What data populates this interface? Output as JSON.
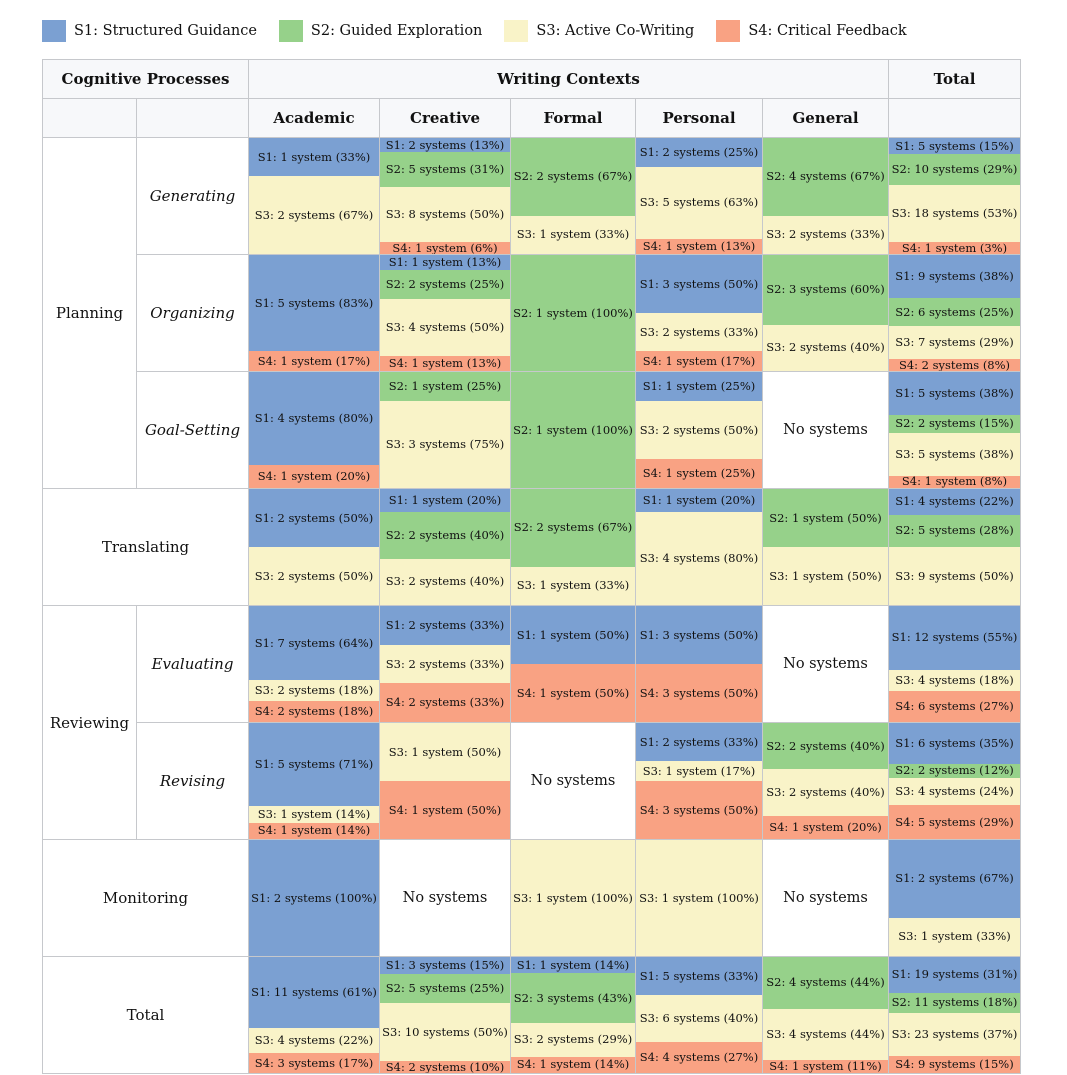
{
  "colors": {
    "S1": "#7ba0d2",
    "S2": "#96d18a",
    "S3": "#f9f3c8",
    "S4": "#f9a283"
  },
  "legend": [
    "S1: Structured Guidance",
    "S2: Guided Exploration",
    "S3: Active Co-Writing",
    "S4: Critical Feedback"
  ],
  "header": {
    "cognitive": "Cognitive Processes",
    "contexts": "Writing Contexts",
    "total": "Total",
    "columns": [
      "Academic",
      "Creative",
      "Formal",
      "Personal",
      "General"
    ]
  },
  "chart_data": {
    "type": "table",
    "no_systems": "No systems",
    "rows": [
      {
        "group": "Planning",
        "sub": "Generating",
        "cells": [
          [
            "S1: 1 system (33%)",
            "S3: 2 systems (67%)"
          ],
          [
            "S1: 2 systems (13%)",
            "S2: 5 systems (31%)",
            "S3: 8 systems (50%)",
            "S4: 1 system (6%)"
          ],
          [
            "S2: 2 systems (67%)",
            "S3: 1 system (33%)"
          ],
          [
            "S1: 2 systems (25%)",
            "S3: 5 systems (63%)",
            "S4: 1 system (13%)"
          ],
          [
            "S2: 4 systems (67%)",
            "S3: 2 systems (33%)"
          ],
          [
            "S1: 5 systems (15%)",
            "S2: 10 systems (29%)",
            "S3: 18 systems (53%)",
            "S4: 1 system (3%)"
          ]
        ]
      },
      {
        "group": "Planning",
        "sub": "Organizing",
        "cells": [
          [
            "S1: 5 systems (83%)",
            "S4: 1 system (17%)"
          ],
          [
            "S1: 1 system (13%)",
            "S2: 2 systems (25%)",
            "S3: 4 systems (50%)",
            "S4: 1 system (13%)"
          ],
          [
            "S2: 1 system (100%)"
          ],
          [
            "S1: 3 systems (50%)",
            "S3: 2 systems (33%)",
            "S4: 1 system (17%)"
          ],
          [
            "S2: 3 systems (60%)",
            "S3: 2 systems (40%)"
          ],
          [
            "S1: 9 systems (38%)",
            "S2: 6 systems (25%)",
            "S3: 7 systems (29%)",
            "S4: 2 systems (8%)"
          ]
        ]
      },
      {
        "group": "Planning",
        "sub": "Goal-Setting",
        "cells": [
          [
            "S1: 4 systems (80%)",
            "S4: 1 system (20%)"
          ],
          [
            "S2: 1 system (25%)",
            "S3: 3 systems (75%)"
          ],
          [
            "S2: 1 system (100%)"
          ],
          [
            "S1: 1 system (25%)",
            "S3: 2 systems (50%)",
            "S4: 1 system (25%)"
          ],
          [],
          [
            "S1: 5 systems (38%)",
            "S2: 2 systems (15%)",
            "S3: 5 systems (38%)",
            "S4: 1 system (8%)"
          ]
        ]
      },
      {
        "group": "Translating",
        "sub": "",
        "cells": [
          [
            "S1: 2 systems (50%)",
            "S3: 2 systems (50%)"
          ],
          [
            "S1: 1 system (20%)",
            "S2: 2 systems (40%)",
            "S3: 2 systems (40%)"
          ],
          [
            "S2: 2 systems (67%)",
            "S3: 1 system (33%)"
          ],
          [
            "S1: 1 system (20%)",
            "S3: 4 systems (80%)"
          ],
          [
            "S2: 1 system (50%)",
            "S3: 1 system (50%)"
          ],
          [
            "S1: 4 systems (22%)",
            "S2: 5 systems (28%)",
            "S3: 9 systems (50%)"
          ]
        ]
      },
      {
        "group": "Reviewing",
        "sub": "Evaluating",
        "cells": [
          [
            "S1: 7 systems (64%)",
            "S3: 2 systems (18%)",
            "S4: 2 systems (18%)"
          ],
          [
            "S1: 2 systems (33%)",
            "S3: 2 systems (33%)",
            "S4: 2 systems (33%)"
          ],
          [
            "S1: 1 system (50%)",
            "S4: 1 system (50%)"
          ],
          [
            "S1: 3 systems (50%)",
            "S4: 3 systems (50%)"
          ],
          [],
          [
            "S1: 12 systems (55%)",
            "S3: 4 systems (18%)",
            "S4: 6 systems (27%)"
          ]
        ]
      },
      {
        "group": "Reviewing",
        "sub": "Revising",
        "cells": [
          [
            "S1: 5 systems (71%)",
            "S3: 1 system (14%)",
            "S4: 1 system (14%)"
          ],
          [
            "S3: 1 system (50%)",
            "S4: 1 system (50%)"
          ],
          [],
          [
            "S1: 2 systems (33%)",
            "S3: 1 system (17%)",
            "S4: 3 systems (50%)"
          ],
          [
            "S2: 2 systems (40%)",
            "S3: 2 systems (40%)",
            "S4: 1 system (20%)"
          ],
          [
            "S1: 6 systems (35%)",
            "S2: 2 systems (12%)",
            "S3: 4 systems (24%)",
            "S4: 5 systems (29%)"
          ]
        ]
      },
      {
        "group": "Monitoring",
        "sub": "",
        "cells": [
          [
            "S1: 2 systems (100%)"
          ],
          [],
          [
            "S3: 1 system (100%)"
          ],
          [
            "S3: 1 system (100%)"
          ],
          [],
          [
            "S1: 2 systems (67%)",
            "S3: 1 system (33%)"
          ]
        ]
      },
      {
        "group": "Total",
        "sub": "",
        "cells": [
          [
            "S1: 11 systems (61%)",
            "S3: 4 systems (22%)",
            "S4: 3 systems (17%)"
          ],
          [
            "S1: 3 systems (15%)",
            "S2: 5 systems (25%)",
            "S3: 10 systems (50%)",
            "S4: 2 systems (10%)"
          ],
          [
            "S1: 1 system (14%)",
            "S2: 3 systems (43%)",
            "S3: 2 systems (29%)",
            "S4: 1 system (14%)"
          ],
          [
            "S1: 5 systems (33%)",
            "S3: 6 systems (40%)",
            "S4: 4 systems (27%)"
          ],
          [
            "S2: 4 systems (44%)",
            "S3: 4 systems (44%)",
            "S4: 1 system (11%)"
          ],
          [
            "S1: 19 systems (31%)",
            "S2: 11 systems (18%)",
            "S3: 23 systems (37%)",
            "S4: 9 systems (15%)"
          ]
        ]
      }
    ]
  }
}
